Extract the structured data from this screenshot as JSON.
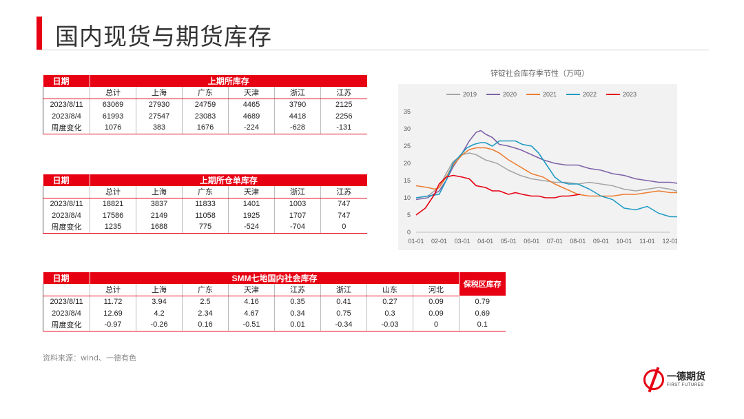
{
  "page": {
    "title": "国内现货与期货库存",
    "source": "资料来源：wind、一德有色"
  },
  "logo": {
    "name": "一德期货",
    "sub": "FIRST FUTURES"
  },
  "table1": {
    "date_header": "日期",
    "group_header": "上期所库存",
    "columns": [
      "总计",
      "上海",
      "广东",
      "天津",
      "浙江",
      "江苏"
    ],
    "rows": [
      {
        "date": "2023/8/11",
        "values": [
          "63069",
          "27930",
          "24759",
          "4465",
          "3790",
          "2125"
        ]
      },
      {
        "date": "2023/8/4",
        "values": [
          "61993",
          "27547",
          "23083",
          "4689",
          "4418",
          "2256"
        ]
      },
      {
        "date": "周度变化",
        "values": [
          "1076",
          "383",
          "1676",
          "-224",
          "-628",
          "-131"
        ]
      }
    ]
  },
  "table2": {
    "date_header": "日期",
    "group_header": "上期所仓单库存",
    "columns": [
      "总计",
      "上海",
      "广东",
      "天津",
      "浙江",
      "江苏"
    ],
    "rows": [
      {
        "date": "2023/8/11",
        "values": [
          "18821",
          "3837",
          "11833",
          "1401",
          "1003",
          "747"
        ]
      },
      {
        "date": "2023/8/4",
        "values": [
          "17586",
          "2149",
          "11058",
          "1925",
          "1707",
          "747"
        ]
      },
      {
        "date": "周度变化",
        "values": [
          "1235",
          "1688",
          "775",
          "-524",
          "-704",
          "0"
        ]
      }
    ]
  },
  "table3": {
    "date_header": "日期",
    "group_header": "SMM七地国内社会库存",
    "bonded_header": "保税区库存",
    "columns": [
      "总计",
      "上海",
      "广东",
      "天津",
      "江苏",
      "浙江",
      "山东",
      "河北"
    ],
    "rows": [
      {
        "date": "2023/8/11",
        "values": [
          "11.72",
          "3.94",
          "2.5",
          "4.16",
          "0.35",
          "0.41",
          "0.27",
          "0.09"
        ],
        "bonded": "0.79"
      },
      {
        "date": "2023/8/4",
        "values": [
          "12.69",
          "4.2",
          "2.34",
          "4.67",
          "0.34",
          "0.75",
          "0.3",
          "0.09"
        ],
        "bonded": "0.69"
      },
      {
        "date": "周度变化",
        "values": [
          "-0.97",
          "-0.26",
          "0.16",
          "-0.51",
          "0.01",
          "-0.34",
          "-0.03",
          "0"
        ],
        "bonded": "0.1"
      }
    ]
  },
  "chart_data": {
    "type": "line",
    "title": "锌锭社会库存季节性（万吨）",
    "x_ticks": [
      "01-01",
      "02-01",
      "03-01",
      "04-01",
      "05-01",
      "06-01",
      "07-01",
      "08-01",
      "09-01",
      "10-01",
      "11-01",
      "12-01"
    ],
    "ylim": [
      0,
      35
    ],
    "y_ticks": [
      0,
      5,
      10,
      15,
      20,
      25,
      30,
      35
    ],
    "grid": false,
    "legend": "top",
    "series": [
      {
        "name": "2019",
        "color": "#a5a5a5",
        "x": [
          0,
          0.5,
          1,
          1.3,
          1.6,
          2,
          2.3,
          2.6,
          3,
          3.5,
          4,
          4.5,
          5,
          5.5,
          6,
          6.5,
          7,
          7.5,
          8,
          8.5,
          9,
          9.5,
          10,
          10.5,
          11,
          11.5,
          11.8
        ],
        "y": [
          10,
          10.5,
          13,
          17,
          20.5,
          22.5,
          23,
          22.5,
          21,
          20,
          18,
          16.5,
          15.5,
          15,
          14.5,
          14.5,
          14,
          14.5,
          14,
          13.5,
          12.5,
          12,
          12.5,
          13,
          12.5,
          11.5,
          10.5
        ]
      },
      {
        "name": "2020",
        "color": "#7e62a8",
        "x": [
          0,
          0.5,
          1,
          1.3,
          1.6,
          2,
          2.3,
          2.6,
          2.8,
          3,
          3.3,
          3.6,
          4,
          4.5,
          5,
          5.5,
          6,
          6.5,
          7,
          7.5,
          8,
          8.5,
          9,
          9.5,
          10,
          10.5,
          11,
          11.5,
          11.8
        ],
        "y": [
          9.5,
          10,
          12,
          15,
          19,
          23,
          26.5,
          29,
          29.5,
          28.5,
          27.5,
          25.5,
          25,
          24,
          22.5,
          21,
          20,
          19.5,
          19.5,
          18.5,
          18,
          17,
          16.5,
          15.5,
          15,
          14.5,
          14.5,
          14,
          12.5
        ]
      },
      {
        "name": "2021",
        "color": "#ed7d31",
        "x": [
          0,
          0.5,
          0.8,
          1,
          1.3,
          1.6,
          2,
          2.3,
          2.6,
          3,
          3.3,
          3.6,
          4,
          4.5,
          5,
          5.5,
          6,
          6.5,
          7,
          7.5,
          8,
          8.5,
          9,
          9.5,
          10,
          10.5,
          11,
          11.5,
          11.8
        ],
        "y": [
          13.5,
          13,
          12.5,
          13,
          16,
          19.5,
          22.5,
          24,
          24.5,
          24.5,
          24,
          23,
          21,
          19,
          17,
          16,
          14,
          12.5,
          11,
          10.5,
          10.5,
          10.5,
          11,
          11,
          11.5,
          12,
          11.5,
          11.5,
          11
        ]
      },
      {
        "name": "2022",
        "color": "#1f9bc4",
        "x": [
          0,
          0.5,
          1,
          1.3,
          1.6,
          2,
          2.2,
          2.5,
          2.8,
          3,
          3.3,
          3.6,
          4,
          4.3,
          4.6,
          5,
          5.3,
          5.6,
          6,
          6.3,
          6.6,
          7,
          7.5,
          8,
          8.5,
          9,
          9.5,
          10,
          10.5,
          11,
          11.5,
          11.8
        ],
        "y": [
          10,
          10.5,
          11,
          15,
          20,
          23,
          24.5,
          25.5,
          26,
          26,
          25,
          26.5,
          26.5,
          26.5,
          25.5,
          25,
          23,
          20,
          16,
          14.5,
          14,
          14,
          12.5,
          10.5,
          9.5,
          7,
          6.5,
          7.5,
          5.5,
          4.5,
          4.5,
          4.5
        ]
      },
      {
        "name": "2023",
        "color": "#e60012",
        "x": [
          0,
          0.4,
          0.8,
          1,
          1.3,
          1.6,
          2,
          2.3,
          2.6,
          3,
          3.3,
          3.6,
          4,
          4.3,
          4.6,
          5,
          5.3,
          5.6,
          6,
          6.3,
          6.6,
          7.1
        ],
        "y": [
          5,
          7,
          11,
          14,
          16,
          16.5,
          16,
          15.5,
          13.5,
          13,
          12,
          12,
          11,
          11.5,
          11,
          10.5,
          10.5,
          10,
          10,
          10.5,
          10.5,
          11
        ]
      }
    ]
  }
}
